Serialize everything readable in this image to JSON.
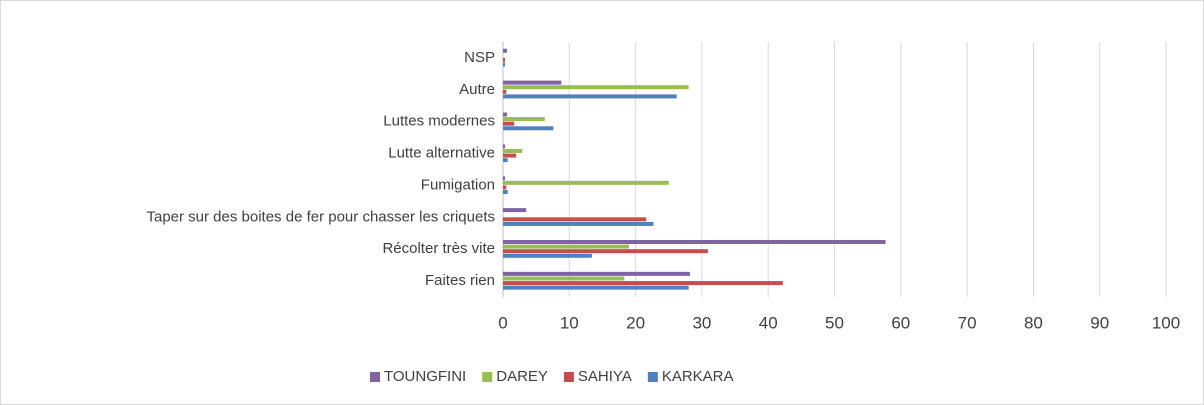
{
  "chart_data": {
    "type": "bar",
    "orientation": "horizontal",
    "categories": [
      "Faites rien",
      "Récolter très vite",
      "Taper sur des boites de fer pour chasser les criquets",
      "Fumigation",
      "Lutte alternative",
      "Luttes modernes",
      "Autre",
      "NSP"
    ],
    "series": [
      {
        "name": "TOUNGFINI",
        "color": "#8064a2",
        "values": [
          28.2,
          57.7,
          3.5,
          0.3,
          0.3,
          0.6,
          8.8,
          0.6
        ]
      },
      {
        "name": "DAREY",
        "color": "#9bbb59",
        "values": [
          18.3,
          19,
          0,
          25,
          2.9,
          6.3,
          28,
          0
        ]
      },
      {
        "name": "SAHIYA",
        "color": "#c0504d",
        "values": [
          42.2,
          30.9,
          21.6,
          0.5,
          2,
          1.7,
          0.5,
          0.3
        ]
      },
      {
        "name": "KARKARA",
        "color": "#4f81bd",
        "values": [
          28,
          13.4,
          22.7,
          0.7,
          0.7,
          7.6,
          26.2,
          0.3
        ]
      }
    ],
    "xlim": [
      0,
      100
    ],
    "xticks": [
      0,
      10,
      20,
      30,
      40,
      50,
      60,
      70,
      80,
      90,
      100
    ],
    "grid": true,
    "legend": "bottom"
  }
}
